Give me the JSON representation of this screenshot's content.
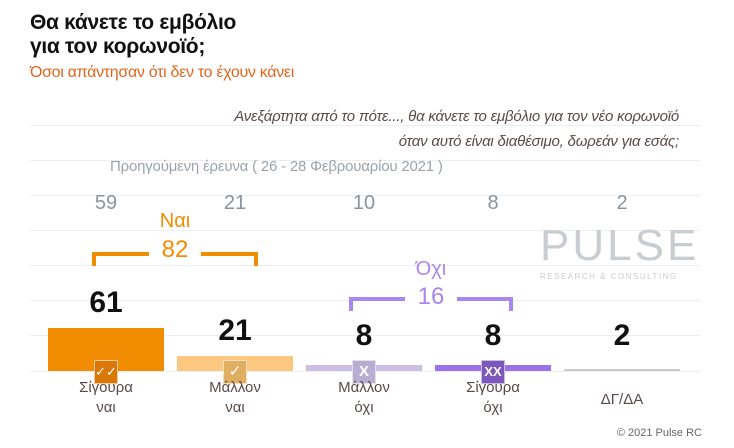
{
  "title_line1": "Θα κάνετε το εμβόλιο",
  "title_line2": "για τον κορωνοϊό;",
  "subtitle": "Όσοι απάντησαν ότι δεν το έχουν κάνει",
  "question_line1": "Ανεξάρτητα από το πότε..., θα κάνετε το εμβόλιο για τον νέο κορωνοϊό",
  "question_line2": "όταν αυτό είναι διαθέσιμο, δωρεάν για εσάς;",
  "previous_label": "Προηγούμενη έρευνα  ( 26 - 28  Φεβρουαρίου  2021 )",
  "watermark": "PULSE",
  "watermark_sub": "RESEARCH & CONSULTING",
  "copyright": "© 2021 Pulse RC",
  "chart_data": {
    "type": "bar",
    "categories": [
      {
        "line1": "Σίγουρα",
        "line2": "ναι"
      },
      {
        "line1": "Μάλλον",
        "line2": "ναι"
      },
      {
        "line1": "Μάλλον",
        "line2": "όχι"
      },
      {
        "line1": "Σίγουρα",
        "line2": "όχι"
      },
      {
        "line1": "ΔΓ/ΔΑ",
        "line2": ""
      }
    ],
    "values": [
      61,
      21,
      8,
      8,
      2
    ],
    "previous_values": [
      59,
      21,
      10,
      8,
      2
    ],
    "colors": [
      "#f28c00",
      "#fcc880",
      "#cbbfe6",
      "#9c72ea",
      "#c9c9c9"
    ],
    "icon_colors": [
      "#d97808",
      "#e0b062",
      "#b8aed2",
      "#7b58ba",
      ""
    ],
    "icons": [
      "double-check",
      "check",
      "cross",
      "double-cross",
      ""
    ],
    "icon_glyphs": [
      "✓✓",
      "✓",
      "X",
      "XX",
      ""
    ],
    "groups": [
      {
        "label": "Ναι",
        "total": 82,
        "color": "#f28c00"
      },
      {
        "label": "Όχι",
        "total": 16,
        "color": "#a987ee"
      }
    ],
    "grid": true
  }
}
